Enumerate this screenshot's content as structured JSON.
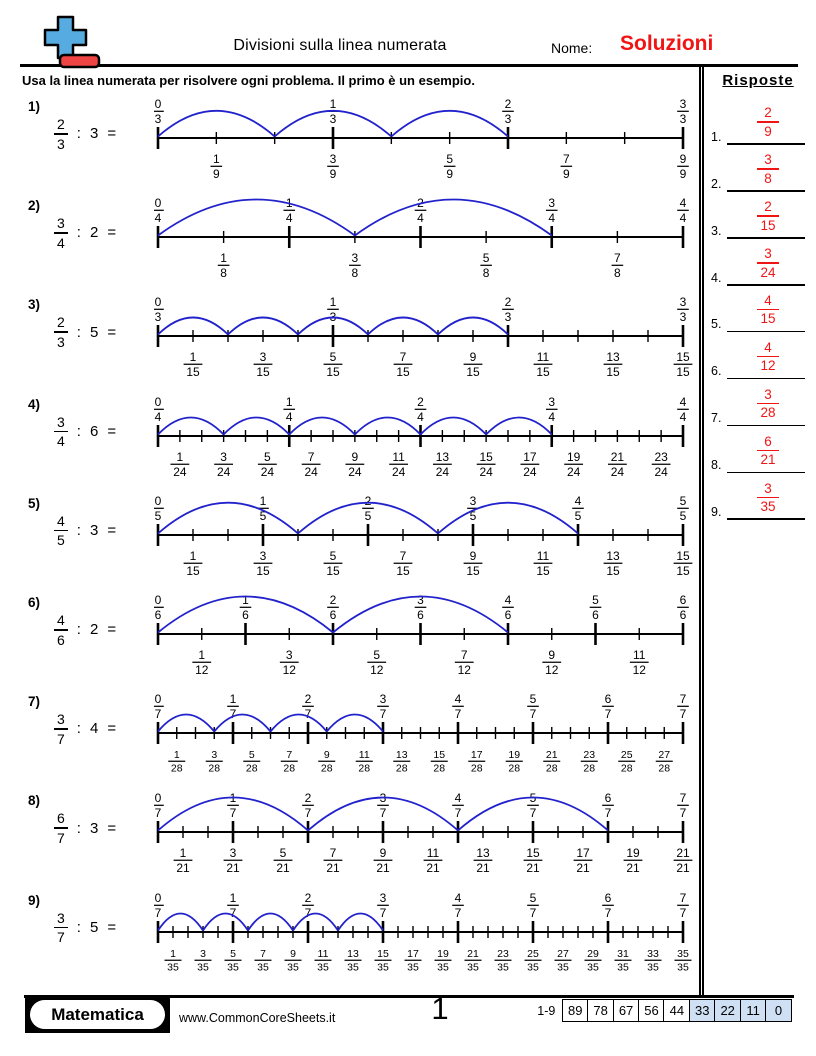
{
  "header": {
    "title": "Divisioni sulla linea numerata",
    "nome_label": "Nome:",
    "soluzioni": "Soluzioni"
  },
  "instruction": "Usa la linea numerata per risolvere ogni problema. Il primo è un esempio.",
  "risposte": {
    "title": "Risposte",
    "answers": [
      {
        "index": "1.",
        "num": "2",
        "den": "9"
      },
      {
        "index": "2.",
        "num": "3",
        "den": "8"
      },
      {
        "index": "3.",
        "num": "2",
        "den": "15"
      },
      {
        "index": "4.",
        "num": "3",
        "den": "24"
      },
      {
        "index": "5.",
        "num": "4",
        "den": "15"
      },
      {
        "index": "6.",
        "num": "4",
        "den": "12"
      },
      {
        "index": "7.",
        "num": "3",
        "den": "28"
      },
      {
        "index": "8.",
        "num": "6",
        "den": "21"
      },
      {
        "index": "9.",
        "num": "3",
        "den": "35"
      }
    ]
  },
  "problems": [
    {
      "label": "1)",
      "num": "2",
      "den": "3",
      "op": ":",
      "divisor": "3",
      "eq": "=",
      "subdivisions": 9,
      "top_labels": [
        "0/3",
        "1/3",
        "2/3",
        "3/3"
      ],
      "bottom_labels": [
        "1/9",
        "3/9",
        "5/9",
        "7/9",
        "9/9"
      ],
      "arc_count": 3,
      "arc_hop": 2
    },
    {
      "label": "2)",
      "num": "3",
      "den": "4",
      "op": ":",
      "divisor": "2",
      "eq": "=",
      "subdivisions": 8,
      "top_labels": [
        "0/4",
        "1/4",
        "2/4",
        "3/4",
        "4/4"
      ],
      "bottom_labels": [
        "1/8",
        "3/8",
        "5/8",
        "7/8"
      ],
      "arc_count": 2,
      "arc_hop": 3
    },
    {
      "label": "3)",
      "num": "2",
      "den": "3",
      "op": ":",
      "divisor": "5",
      "eq": "=",
      "subdivisions": 15,
      "top_labels": [
        "0/3",
        "1/3",
        "2/3",
        "3/3"
      ],
      "bottom_labels": [
        "1/15",
        "3/15",
        "5/15",
        "7/15",
        "9/15",
        "11/15",
        "13/15",
        "15/15"
      ],
      "arc_count": 5,
      "arc_hop": 2
    },
    {
      "label": "4)",
      "num": "3",
      "den": "4",
      "op": ":",
      "divisor": "6",
      "eq": "=",
      "subdivisions": 24,
      "top_labels": [
        "0/4",
        "1/4",
        "2/4",
        "3/4",
        "4/4"
      ],
      "bottom_labels": [
        "1/24",
        "3/24",
        "5/24",
        "7/24",
        "9/24",
        "11/24",
        "13/24",
        "15/24",
        "17/24",
        "19/24",
        "21/24",
        "23/24"
      ],
      "arc_count": 6,
      "arc_hop": 3
    },
    {
      "label": "5)",
      "num": "4",
      "den": "5",
      "op": ":",
      "divisor": "3",
      "eq": "=",
      "subdivisions": 15,
      "top_labels": [
        "0/5",
        "1/5",
        "2/5",
        "3/5",
        "4/5",
        "5/5"
      ],
      "bottom_labels": [
        "1/15",
        "3/15",
        "5/15",
        "7/15",
        "9/15",
        "11/15",
        "13/15",
        "15/15"
      ],
      "arc_count": 3,
      "arc_hop": 4
    },
    {
      "label": "6)",
      "num": "4",
      "den": "6",
      "op": ":",
      "divisor": "2",
      "eq": "=",
      "subdivisions": 12,
      "top_labels": [
        "0/6",
        "1/6",
        "2/6",
        "3/6",
        "4/6",
        "5/6",
        "6/6"
      ],
      "bottom_labels": [
        "1/12",
        "3/12",
        "5/12",
        "7/12",
        "9/12",
        "11/12"
      ],
      "arc_count": 2,
      "arc_hop": 4
    },
    {
      "label": "7)",
      "num": "3",
      "den": "7",
      "op": ":",
      "divisor": "4",
      "eq": "=",
      "subdivisions": 28,
      "top_labels": [
        "0/7",
        "1/7",
        "2/7",
        "3/7",
        "4/7",
        "5/7",
        "6/7",
        "7/7"
      ],
      "bottom_labels": [
        "1/28",
        "3/28",
        "5/28",
        "7/28",
        "9/28",
        "11/28",
        "13/28",
        "15/28",
        "17/28",
        "19/28",
        "21/28",
        "23/28",
        "25/28",
        "27/28"
      ],
      "arc_count": 4,
      "arc_hop": 3
    },
    {
      "label": "8)",
      "num": "6",
      "den": "7",
      "op": ":",
      "divisor": "3",
      "eq": "=",
      "subdivisions": 21,
      "top_labels": [
        "0/7",
        "1/7",
        "2/7",
        "3/7",
        "4/7",
        "5/7",
        "6/7",
        "7/7"
      ],
      "bottom_labels": [
        "1/21",
        "3/21",
        "5/21",
        "7/21",
        "9/21",
        "11/21",
        "13/21",
        "15/21",
        "17/21",
        "19/21",
        "21/21"
      ],
      "arc_count": 3,
      "arc_hop": 6
    },
    {
      "label": "9)",
      "num": "3",
      "den": "7",
      "op": ":",
      "divisor": "5",
      "eq": "=",
      "subdivisions": 35,
      "top_labels": [
        "0/7",
        "1/7",
        "2/7",
        "3/7",
        "4/7",
        "5/7",
        "6/7",
        "7/7"
      ],
      "bottom_labels": [
        "1/35",
        "3/35",
        "5/35",
        "7/35",
        "9/35",
        "11/35",
        "13/35",
        "15/35",
        "17/35",
        "19/35",
        "21/35",
        "23/35",
        "25/35",
        "27/35",
        "29/35",
        "31/35",
        "33/35",
        "35/35"
      ],
      "arc_count": 5,
      "arc_hop": 3
    }
  ],
  "footer": {
    "brand": "Matematica",
    "site": "www.CommonCoreSheets.it",
    "page_number": "1",
    "score_label": "1-9",
    "scores": [
      "89",
      "78",
      "67",
      "56",
      "44",
      "33",
      "22",
      "11",
      "0"
    ],
    "highlight_start": 5
  },
  "colors": {
    "arc_blue": "#2222cc",
    "answer_red": "#f01414",
    "logo_blue": "#56ace0",
    "logo_red": "#ee4444",
    "score_highlight": "#cfe0f4"
  }
}
